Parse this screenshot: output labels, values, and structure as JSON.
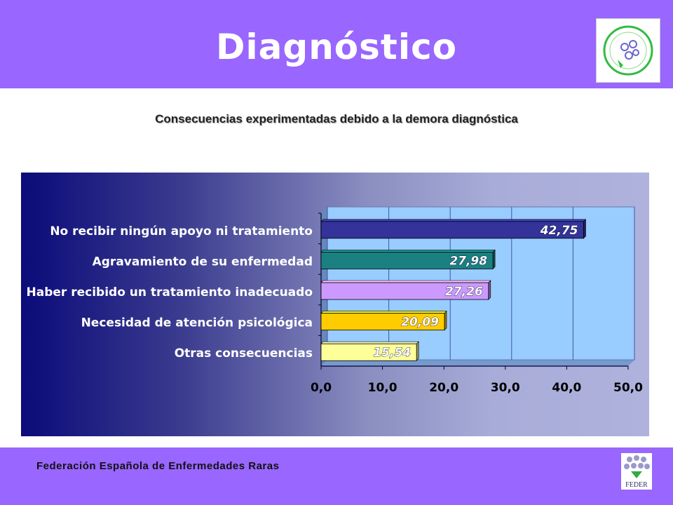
{
  "header": {
    "title": "Diagnóstico"
  },
  "footer": {
    "text": "Federación Española de Enfermedades Raras",
    "logo_label": "FEDER"
  },
  "colors": {
    "header_bg": "#9966ff",
    "plot_bg": "#99ccff"
  },
  "chart_data": {
    "type": "bar",
    "orientation": "horizontal",
    "title": "Consecuencias experimentadas debido a la demora diagnóstica",
    "categories": [
      "No recibir ningún apoyo ni tratamiento",
      "Agravamiento de su enfermedad",
      "Haber recibido un tratamiento inadecuado",
      "Necesidad de atención psicológica",
      "Otras consecuencias"
    ],
    "values": [
      42.75,
      27.98,
      27.26,
      20.09,
      15.54
    ],
    "value_labels": [
      "42,75",
      "27,98",
      "27,26",
      "20,09",
      "15,54"
    ],
    "bar_colors": [
      "#333399",
      "#1a8080",
      "#cc99ff",
      "#ffcc00",
      "#ffff99"
    ],
    "xlim": [
      0,
      50
    ],
    "xticks": [
      0,
      10,
      20,
      30,
      40,
      50
    ],
    "xtick_labels": [
      "0,0",
      "10,0",
      "20,0",
      "30,0",
      "40,0",
      "50,0"
    ],
    "grid": true,
    "legend": "none"
  }
}
